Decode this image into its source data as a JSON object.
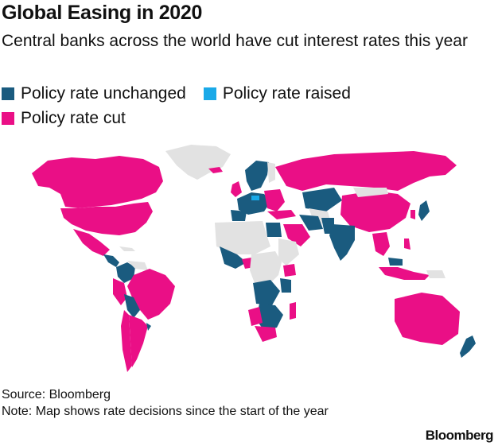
{
  "title": "Global Easing in 2020",
  "subtitle": "Central banks across the world have cut interest rates this year",
  "legend": [
    {
      "label": "Policy rate unchanged",
      "color": "#1a5b7f"
    },
    {
      "label": "Policy rate raised",
      "color": "#1aa9e8"
    },
    {
      "label": "Policy rate cut",
      "color": "#ea0f86"
    }
  ],
  "colors": {
    "unchanged": "#1a5b7f",
    "raised": "#1aa9e8",
    "cut": "#ea0f86",
    "no_data": "#e2e2e2"
  },
  "source": "Source: Bloomberg",
  "note": "Note: Map shows rate decisions since the start of the year",
  "brand": "Bloomberg"
}
